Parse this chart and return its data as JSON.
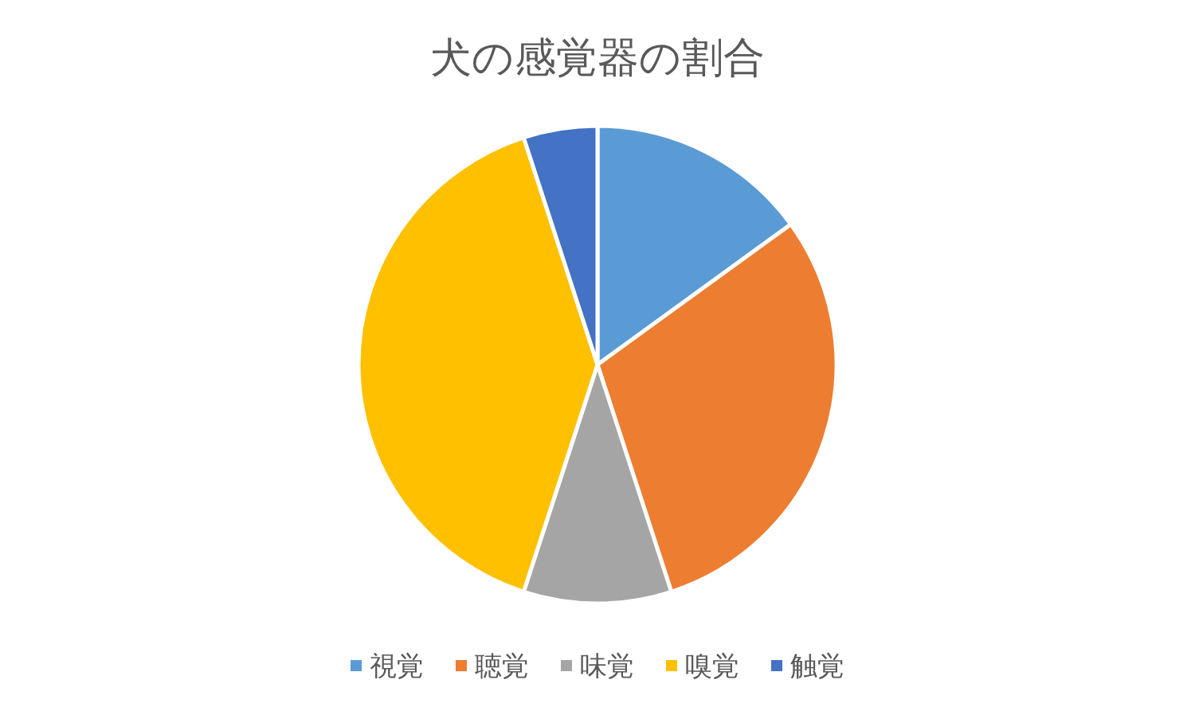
{
  "chart_data": {
    "type": "pie",
    "title": "犬の感覚器の割合",
    "categories": [
      "視覚",
      "聴覚",
      "味覚",
      "嗅覚",
      "触覚"
    ],
    "values": [
      15,
      30,
      10,
      40,
      5
    ],
    "colors": [
      "#5b9bd5",
      "#ed7d31",
      "#a5a5a5",
      "#ffc000",
      "#4472c4"
    ],
    "legend": "bottom"
  }
}
